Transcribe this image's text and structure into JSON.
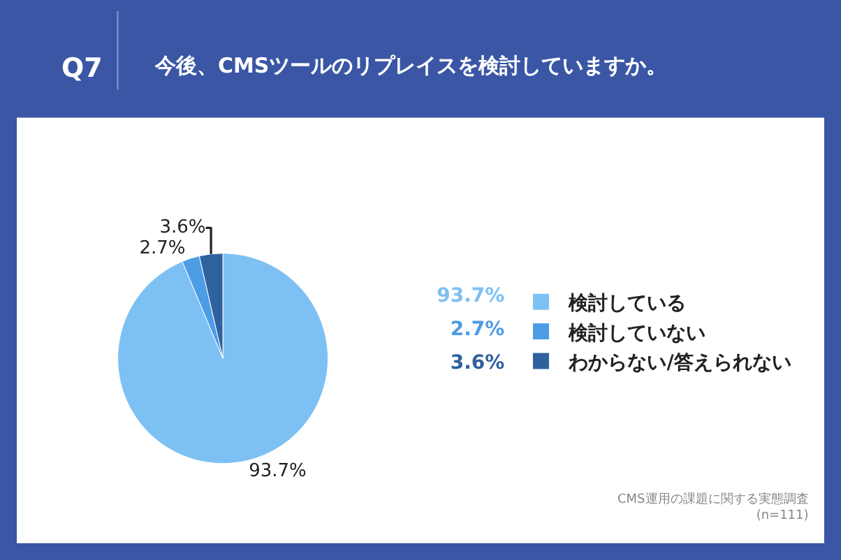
{
  "chart_data": {
    "type": "pie",
    "title": "Q7",
    "subtitle": "今後、CMSツールのリプレイスを検討していますか。",
    "categories": [
      "検討している",
      "検討していない",
      "わからない/答えられない"
    ],
    "values": [
      93.7,
      2.7,
      3.6
    ],
    "value_labels": [
      "93.7%",
      "2.7%",
      "3.6%"
    ],
    "colors": [
      "#7dc1f4",
      "#4c9ce6",
      "#2f619f"
    ],
    "data_labels": true,
    "legend": "right",
    "annotations": [
      "CMS運用の課題に関する実態調査",
      "(n=111)"
    ]
  }
}
